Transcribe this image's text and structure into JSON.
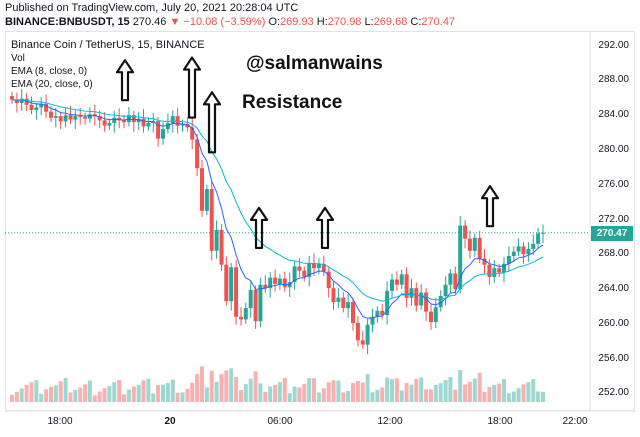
{
  "header": {
    "published": "Published on TradingView.com, July 20, 2021 20:28:04 UTC",
    "symbol": "BINANCE:BNBUSDT, 15",
    "last": "270.46",
    "arrow": "▼",
    "change": "−10.08 (−3.59%)",
    "o_label": "O:",
    "o_val": "269.93",
    "h_label": "H:",
    "h_val": "270.98",
    "l_label": "L:",
    "l_val": "269.68",
    "c_label": "C:",
    "c_val": "270.47"
  },
  "legend": {
    "title": "Binance Coin / TetherUS, 15, BINANCE",
    "vol": "Vol",
    "ema8": "EMA (8, close, 0)",
    "ema20": "EMA (20, close, 0)"
  },
  "annotations": {
    "handle": "@salmanwains",
    "resistance": "Resistance"
  },
  "price_badge": "270.47",
  "colors": {
    "up": "#26a69a",
    "down": "#ef5350",
    "ema8": "#2962ff",
    "ema20": "#00bcd4"
  },
  "chart_data": {
    "type": "line",
    "title": "Binance Coin / TetherUS, 15, BINANCE",
    "y_ticks": [
      "292.00",
      "288.00",
      "284.00",
      "280.00",
      "276.00",
      "272.00",
      "268.00",
      "264.00",
      "260.00",
      "256.00",
      "252.00"
    ],
    "ylim": [
      251,
      293
    ],
    "x_ticks": [
      "18:00",
      "20",
      "06:00",
      "12:00",
      "18:00",
      "22:00"
    ],
    "last_price": 270.47,
    "resistance_arrows_at_price": [
      285.5,
      283.5,
      279.5,
      268.5,
      268.5,
      271
    ],
    "close_series": [
      285.8,
      285.4,
      285.9,
      285.2,
      284.6,
      284.9,
      285.3,
      284.4,
      283.7,
      283.9,
      283.3,
      284.0,
      283.5,
      283.9,
      283.8,
      283.6,
      284.1,
      283.9,
      283.4,
      282.8,
      283.1,
      283.7,
      283.4,
      283.2,
      284.0,
      283.2,
      283.6,
      282.7,
      283.1,
      283.3,
      281.3,
      282.4,
      283.1,
      283.9,
      282.8,
      283.0,
      282.6,
      281.2,
      277.9,
      273.0,
      275.5,
      268.4,
      270.8,
      266.8,
      262.6,
      266.5,
      260.8,
      260.5,
      261.8,
      263.9,
      260.3,
      264.5,
      264.1,
      265.3,
      264.6,
      265.2,
      264.2,
      264.8,
      266.6,
      266.1,
      265.4,
      267.0,
      266.4,
      266.9,
      266.0,
      264.1,
      262.5,
      263.0,
      261.8,
      262.5,
      260.1,
      258.1,
      257.6,
      259.9,
      260.8,
      261.5,
      261.0,
      263.8,
      265.1,
      264.5,
      265.7,
      263.0,
      264.1,
      262.1,
      263.6,
      261.4,
      260.2,
      261.9,
      263.2,
      264.5,
      265.8,
      264.0,
      271.3,
      269.8,
      268.4,
      269.9,
      267.5,
      266.8,
      265.4,
      266.4,
      265.9,
      266.9,
      267.8,
      268.3,
      268.9,
      268.0,
      268.6,
      269.2,
      270.4,
      270.47
    ]
  }
}
